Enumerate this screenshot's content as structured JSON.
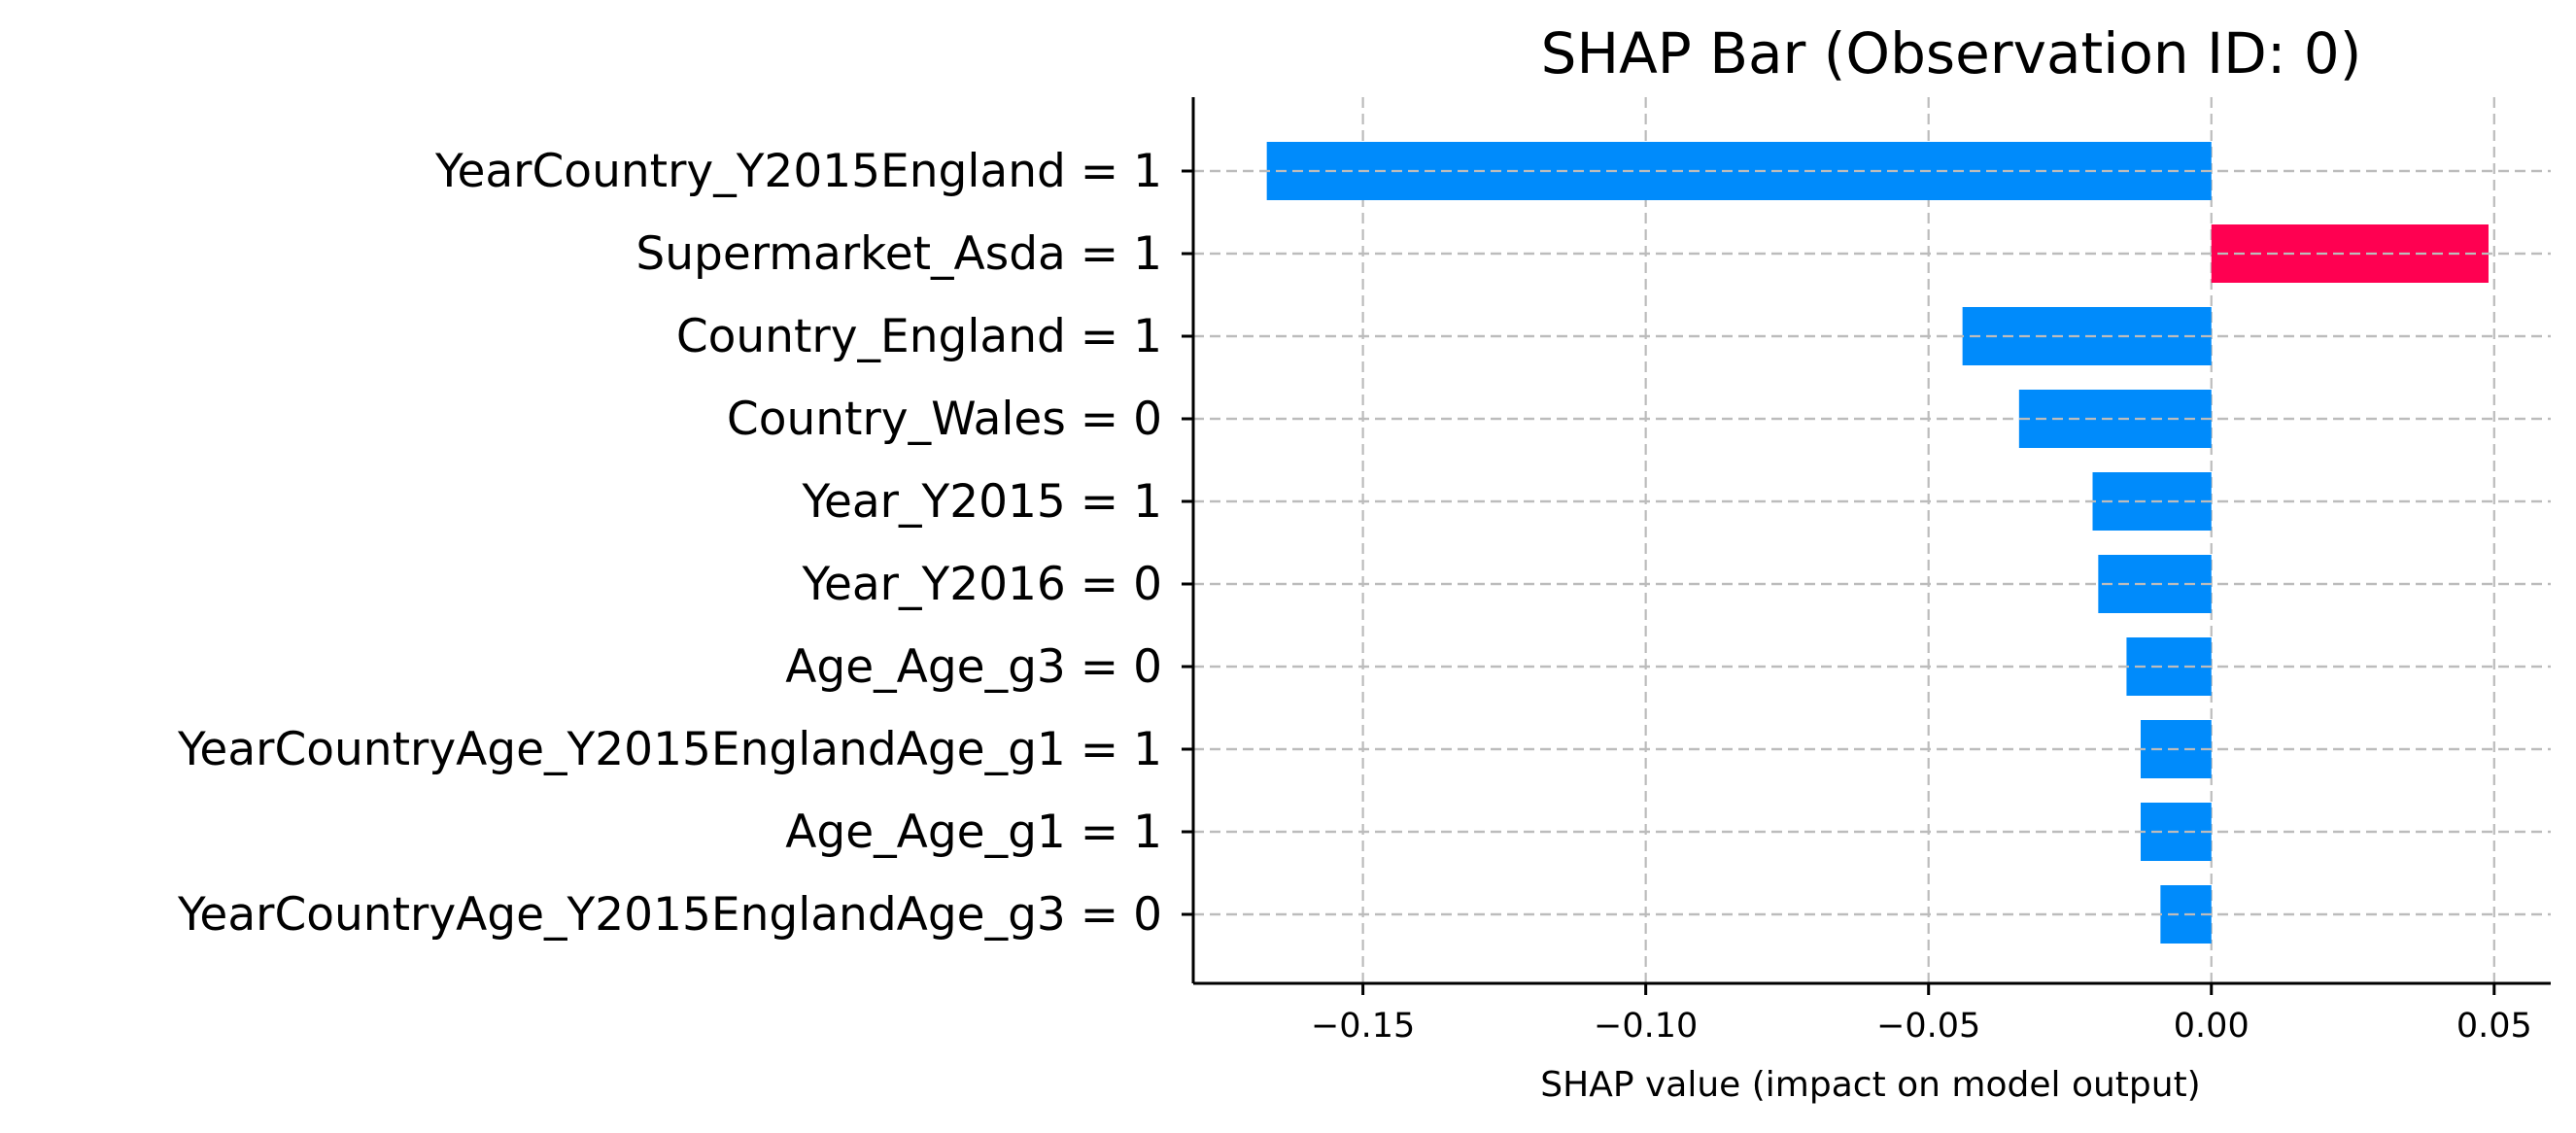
{
  "chart_data": {
    "type": "bar",
    "orientation": "horizontal",
    "title": "SHAP Bar (Observation ID: 0)",
    "xlabel": "SHAP value (impact on model output)",
    "ylabel": "",
    "xlim": [
      -0.18,
      0.06
    ],
    "xticks": [
      -0.15,
      -0.1,
      -0.05,
      0.0,
      0.05
    ],
    "xtick_labels": [
      "−0.15",
      "−0.10",
      "−0.05",
      "0.00",
      "0.05"
    ],
    "grid": true,
    "colors": {
      "positive": "#ff0051",
      "negative": "#008bfb"
    },
    "categories": [
      "YearCountry_Y2015England = 1",
      "Supermarket_Asda = 1",
      "Country_England = 1",
      "Country_Wales = 0",
      "Year_Y2015 = 1",
      "Year_Y2016 = 0",
      "Age_Age_g3 = 0",
      "YearCountryAge_Y2015EnglandAge_g1 = 1",
      "Age_Age_g1 = 1",
      "YearCountryAge_Y2015EnglandAge_g3 = 0"
    ],
    "values": [
      -0.167,
      0.049,
      -0.044,
      -0.034,
      -0.021,
      -0.02,
      -0.015,
      -0.0125,
      -0.0125,
      -0.009
    ]
  }
}
